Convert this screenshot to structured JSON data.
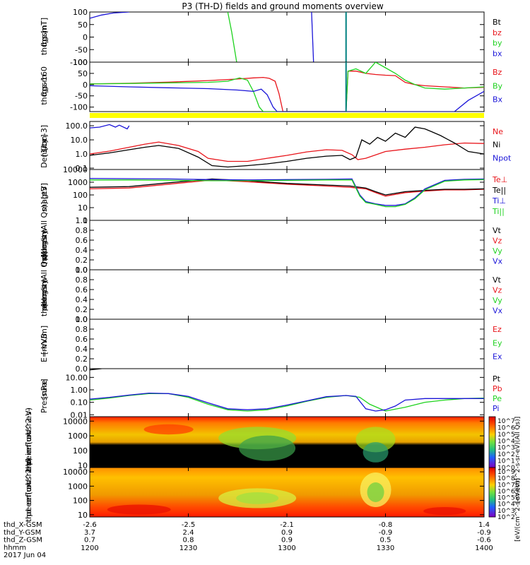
{
  "title": "P3 (TH-D) fields and ground moments overview",
  "colors": {
    "black": "#000000",
    "red": "#e8141a",
    "green": "#1ed21e",
    "blue": "#1a14d8",
    "yellow": "#ffff00",
    "teal": "#008080"
  },
  "x_axis": {
    "tick_labels": [
      "1200",
      "1230",
      "1300",
      "1330",
      "1400"
    ],
    "row_labels": [
      "thd_X-GSM",
      "thd_Y-GSM",
      "thd_Z-GSM",
      "hhmm",
      "2017 Jun 04"
    ],
    "x_gsm": [
      "-2.6",
      "-2.5",
      "-2.1",
      "-0.8",
      "1.4"
    ],
    "y_gsm": [
      "3.7",
      "2.4",
      "0.9",
      "-0.9",
      "-0.9"
    ],
    "z_gsm": [
      "0.7",
      "0.8",
      "0.9",
      "0.5",
      "-0.6"
    ]
  },
  "chart_data": [
    {
      "type": "line",
      "ylabel": [
        "thd",
        "fgs",
        "gsm",
        "[nT]"
      ],
      "ylim": [
        -100,
        100
      ],
      "yticks": [
        "100",
        "50",
        "0",
        "-50",
        "-100"
      ],
      "legend": [
        "Bt",
        "bz",
        "by",
        "bx"
      ],
      "series": [
        {
          "name": "bx",
          "x": [
            1200,
            1206,
            1212,
            1220
          ],
          "y": [
            75,
            88,
            96,
            100
          ]
        },
        {
          "name": "by",
          "x": [
            1270,
            1272,
            1274.5
          ],
          "y": [
            100,
            20,
            -100
          ]
        },
        {
          "name": "bx",
          "x": [
            1312.5,
            1313,
            1313.5
          ],
          "y": [
            100,
            0,
            -100
          ]
        }
      ]
    },
    {
      "type": "line",
      "ylabel": [
        "thd",
        "fgs",
        "gsm",
        "-160"
      ],
      "ylim": [
        -120,
        100
      ],
      "yticks": [
        "100",
        "50",
        "0",
        "-50",
        "-100"
      ],
      "legend": [
        "Bz",
        "By",
        "Bx"
      ],
      "series": [
        {
          "name": "Bz",
          "x": [
            1200,
            1220,
            1240,
            1260,
            1275,
            1283,
            1288,
            1291,
            1294,
            1296,
            1298,
            1330,
            1331,
            1335,
            1340,
            1345,
            1350,
            1355,
            1360,
            1365,
            1370,
            1380,
            1390,
            1400
          ],
          "y": [
            3,
            6,
            11,
            18,
            25,
            30,
            32,
            28,
            15,
            -40,
            -120,
            -120,
            60,
            60,
            50,
            45,
            42,
            40,
            10,
            0,
            -5,
            -10,
            -15,
            -12
          ]
        },
        {
          "name": "By",
          "x": [
            1200,
            1220,
            1240,
            1260,
            1270,
            1276,
            1280,
            1283,
            1286,
            1288,
            1330,
            1331,
            1335,
            1340,
            1345,
            1350,
            1355,
            1360,
            1365,
            1370,
            1380,
            1390,
            1400
          ],
          "y": [
            3,
            5,
            8,
            10,
            15,
            30,
            20,
            -30,
            -100,
            -120,
            -120,
            60,
            70,
            50,
            100,
            75,
            50,
            20,
            0,
            -15,
            -20,
            -15,
            -10
          ]
        },
        {
          "name": "Bx",
          "x": [
            1200,
            1220,
            1240,
            1260,
            1275,
            1283,
            1287,
            1290,
            1293,
            1295,
            1330,
            1385,
            1392,
            1400
          ],
          "y": [
            -5,
            -10,
            -14,
            -18,
            -24,
            -30,
            -20,
            -45,
            -100,
            -120,
            -120,
            -120,
            -70,
            -30
          ]
        }
      ]
    },
    {
      "type": "line",
      "ylabel": [
        "Density",
        "[1/cc]",
        "[cm-3]"
      ],
      "ylog": true,
      "ylim": [
        0.08,
        200
      ],
      "yticks": [
        "100.0",
        "10.0",
        "1.0",
        "0.1"
      ],
      "legend": [
        "Ne",
        "Ni",
        "Npot"
      ],
      "series": [
        {
          "name": "Npot",
          "x": [
            1200,
            1205,
            1210,
            1213,
            1215,
            1219,
            1220
          ],
          "y": [
            70,
            80,
            120,
            80,
            110,
            60,
            100
          ]
        },
        {
          "name": "Ne",
          "x": [
            1200,
            1210,
            1220,
            1228,
            1235,
            1245,
            1255,
            1260,
            1270,
            1280,
            1290,
            1300,
            1310,
            1320,
            1328,
            1333,
            1336,
            1340,
            1350,
            1360,
            1370,
            1380,
            1390,
            1400
          ],
          "y": [
            1.0,
            1.6,
            3.0,
            5.0,
            7.0,
            4.0,
            1.5,
            0.5,
            0.3,
            0.3,
            0.5,
            0.8,
            1.4,
            2.0,
            1.8,
            0.9,
            0.4,
            0.5,
            1.5,
            2.2,
            3.0,
            4.5,
            6.0,
            5.5
          ]
        },
        {
          "name": "Ni",
          "x": [
            1200,
            1210,
            1220,
            1228,
            1235,
            1245,
            1255,
            1262,
            1270,
            1280,
            1290,
            1300,
            1310,
            1320,
            1328,
            1332,
            1335,
            1338,
            1342,
            1346,
            1350,
            1355,
            1360,
            1365,
            1370,
            1373,
            1378,
            1385,
            1392,
            1400
          ],
          "y": [
            0.8,
            1.2,
            2.0,
            3.0,
            4.0,
            2.5,
            0.6,
            0.15,
            0.12,
            0.15,
            0.2,
            0.3,
            0.5,
            0.7,
            0.8,
            0.4,
            0.6,
            10,
            5,
            15,
            8,
            30,
            15,
            80,
            60,
            40,
            20,
            6,
            1.5,
            1.0
          ]
        }
      ]
    },
    {
      "type": "line",
      "ylabel": [
        "magt3",
        "[eV]"
      ],
      "ylog": true,
      "ylim": [
        1,
        10000
      ],
      "yticks": [
        "10000",
        "1000",
        "100",
        "10",
        "1"
      ],
      "legend": [
        "Te⊥",
        "Te||",
        "Ti⊥",
        "Ti||"
      ],
      "series": [
        {
          "name": "Te⊥",
          "x": [
            1200,
            1220,
            1240,
            1262,
            1280,
            1300,
            1320,
            1332,
            1340,
            1345,
            1350,
            1360,
            1370,
            1380,
            1390,
            1400
          ],
          "y": [
            300,
            350,
            700,
            1500,
            1100,
            700,
            500,
            400,
            300,
            150,
            80,
            150,
            200,
            250,
            250,
            280
          ]
        },
        {
          "name": "Te||",
          "x": [
            1200,
            1220,
            1240,
            1262,
            1280,
            1300,
            1320,
            1332,
            1340,
            1345,
            1350,
            1360,
            1370,
            1380,
            1390,
            1400
          ],
          "y": [
            400,
            450,
            900,
            1800,
            1300,
            800,
            600,
            500,
            350,
            180,
            100,
            180,
            230,
            280,
            280,
            300
          ]
        },
        {
          "name": "Ti⊥",
          "x": [
            1200,
            1220,
            1240,
            1262,
            1280,
            1300,
            1320,
            1333,
            1337,
            1340,
            1345,
            1350,
            1355,
            1360,
            1365,
            1370,
            1380,
            1390,
            1400
          ],
          "y": [
            2000,
            1900,
            1800,
            1600,
            1500,
            1600,
            1700,
            1800,
            100,
            30,
            20,
            15,
            15,
            20,
            60,
            300,
            1400,
            1700,
            1800
          ]
        },
        {
          "name": "Ti||",
          "x": [
            1200,
            1220,
            1240,
            1262,
            1280,
            1300,
            1320,
            1333,
            1337,
            1340,
            1345,
            1350,
            1355,
            1360,
            1365,
            1370,
            1380,
            1390,
            1400
          ],
          "y": [
            1500,
            1500,
            1400,
            1300,
            1300,
            1400,
            1500,
            1500,
            80,
            25,
            18,
            12,
            12,
            18,
            50,
            250,
            1200,
            1500,
            1600
          ]
        }
      ]
    },
    {
      "type": "line",
      "ylabel": [
        "thd",
        "peir",
        "velocity",
        "gsm",
        "[km/s (All Qs)]"
      ],
      "ylim": [
        0,
        1
      ],
      "yticks": [
        "1.0",
        "0.8",
        "0.6",
        "0.4",
        "0.2",
        "0.0"
      ],
      "legend": [
        "Vt",
        "Vz",
        "Vy",
        "Vx"
      ],
      "series": []
    },
    {
      "type": "line",
      "ylabel": [
        "thd",
        "peer",
        "velocity",
        "gsm",
        "[km/s (All Qs)]"
      ],
      "ylim": [
        0,
        1
      ],
      "yticks": [
        "1.0",
        "0.8",
        "0.6",
        "0.4",
        "0.2",
        "0.0"
      ],
      "legend": [
        "Vt",
        "Vz",
        "Vy",
        "Vx"
      ],
      "series": []
    },
    {
      "type": "line",
      "ylabel": [
        "E=-VxB",
        "[mV/m]"
      ],
      "ylim": [
        0,
        1
      ],
      "yticks": [
        "1.0",
        "0.8",
        "0.6",
        "0.4",
        "0.2",
        "0.0"
      ],
      "legend": [
        "Ez",
        "Ey",
        "Ex"
      ],
      "series": []
    },
    {
      "type": "line",
      "ylabel": [
        "Pressure",
        "[nPa]"
      ],
      "ylog": true,
      "ylim": [
        0.007,
        50
      ],
      "yticks": [
        "10.00",
        "1.00",
        "0.10",
        "0.01"
      ],
      "legend": [
        "Pt",
        "Pb",
        "Pe",
        "Pi"
      ],
      "series": [
        {
          "name": "Pt",
          "x": [
            1200,
            1206
          ],
          "y": [
            40,
            50
          ]
        },
        {
          "name": "Pe",
          "x": [
            1200,
            1210,
            1220,
            1230,
            1240,
            1250,
            1260,
            1270,
            1280,
            1290,
            1300,
            1310,
            1320,
            1330,
            1337,
            1342,
            1350,
            1360,
            1370,
            1380,
            1390,
            1400
          ],
          "y": [
            0.15,
            0.22,
            0.35,
            0.5,
            0.5,
            0.25,
            0.07,
            0.025,
            0.02,
            0.025,
            0.05,
            0.12,
            0.25,
            0.35,
            0.25,
            0.07,
            0.02,
            0.04,
            0.1,
            0.15,
            0.2,
            0.22
          ]
        },
        {
          "name": "Pi",
          "x": [
            1200,
            1210,
            1220,
            1230,
            1240,
            1250,
            1260,
            1270,
            1280,
            1290,
            1300,
            1310,
            1320,
            1330,
            1335,
            1340,
            1345,
            1350,
            1355,
            1360,
            1370,
            1380,
            1390,
            1400
          ],
          "y": [
            0.18,
            0.25,
            0.38,
            0.55,
            0.5,
            0.3,
            0.09,
            0.03,
            0.025,
            0.03,
            0.06,
            0.13,
            0.28,
            0.35,
            0.3,
            0.03,
            0.02,
            0.025,
            0.05,
            0.15,
            0.2,
            0.2,
            0.2,
            0.2
          ]
        }
      ]
    },
    {
      "type": "heatmap",
      "ylabel": [
        "thd",
        "peir",
        "en",
        "eflux",
        "eV",
        "(cm^2-s-",
        "sr-eV)"
      ],
      "ylog": true,
      "ylim": [
        7,
        20000
      ],
      "yticks": [
        "10000",
        "1000",
        "100",
        "10"
      ]
    },
    {
      "type": "heatmap",
      "ylabel": [
        "thd",
        "peer",
        "en",
        "eflux",
        "eV",
        "(cm^2-s-",
        "sr-eV)"
      ],
      "ylog": true,
      "ylim": [
        7,
        20000
      ],
      "yticks": [
        "10000",
        "1000",
        "100",
        "10"
      ]
    }
  ],
  "colorbars": [
    {
      "labels": [
        "10^7",
        "10^6",
        "10^5",
        "10^4",
        "10^3",
        "10^2",
        "10^1",
        "10^0"
      ],
      "unit": "[eV/(cm^2-s-sr-eV)(All Qs)]"
    },
    {
      "labels": [
        "10^9",
        "10^8",
        "10^7",
        "10^6",
        "10^5",
        "10^4",
        "10^3",
        "10^2"
      ],
      "unit": "[eV/(cm^2-s-sr-eV)]"
    }
  ]
}
